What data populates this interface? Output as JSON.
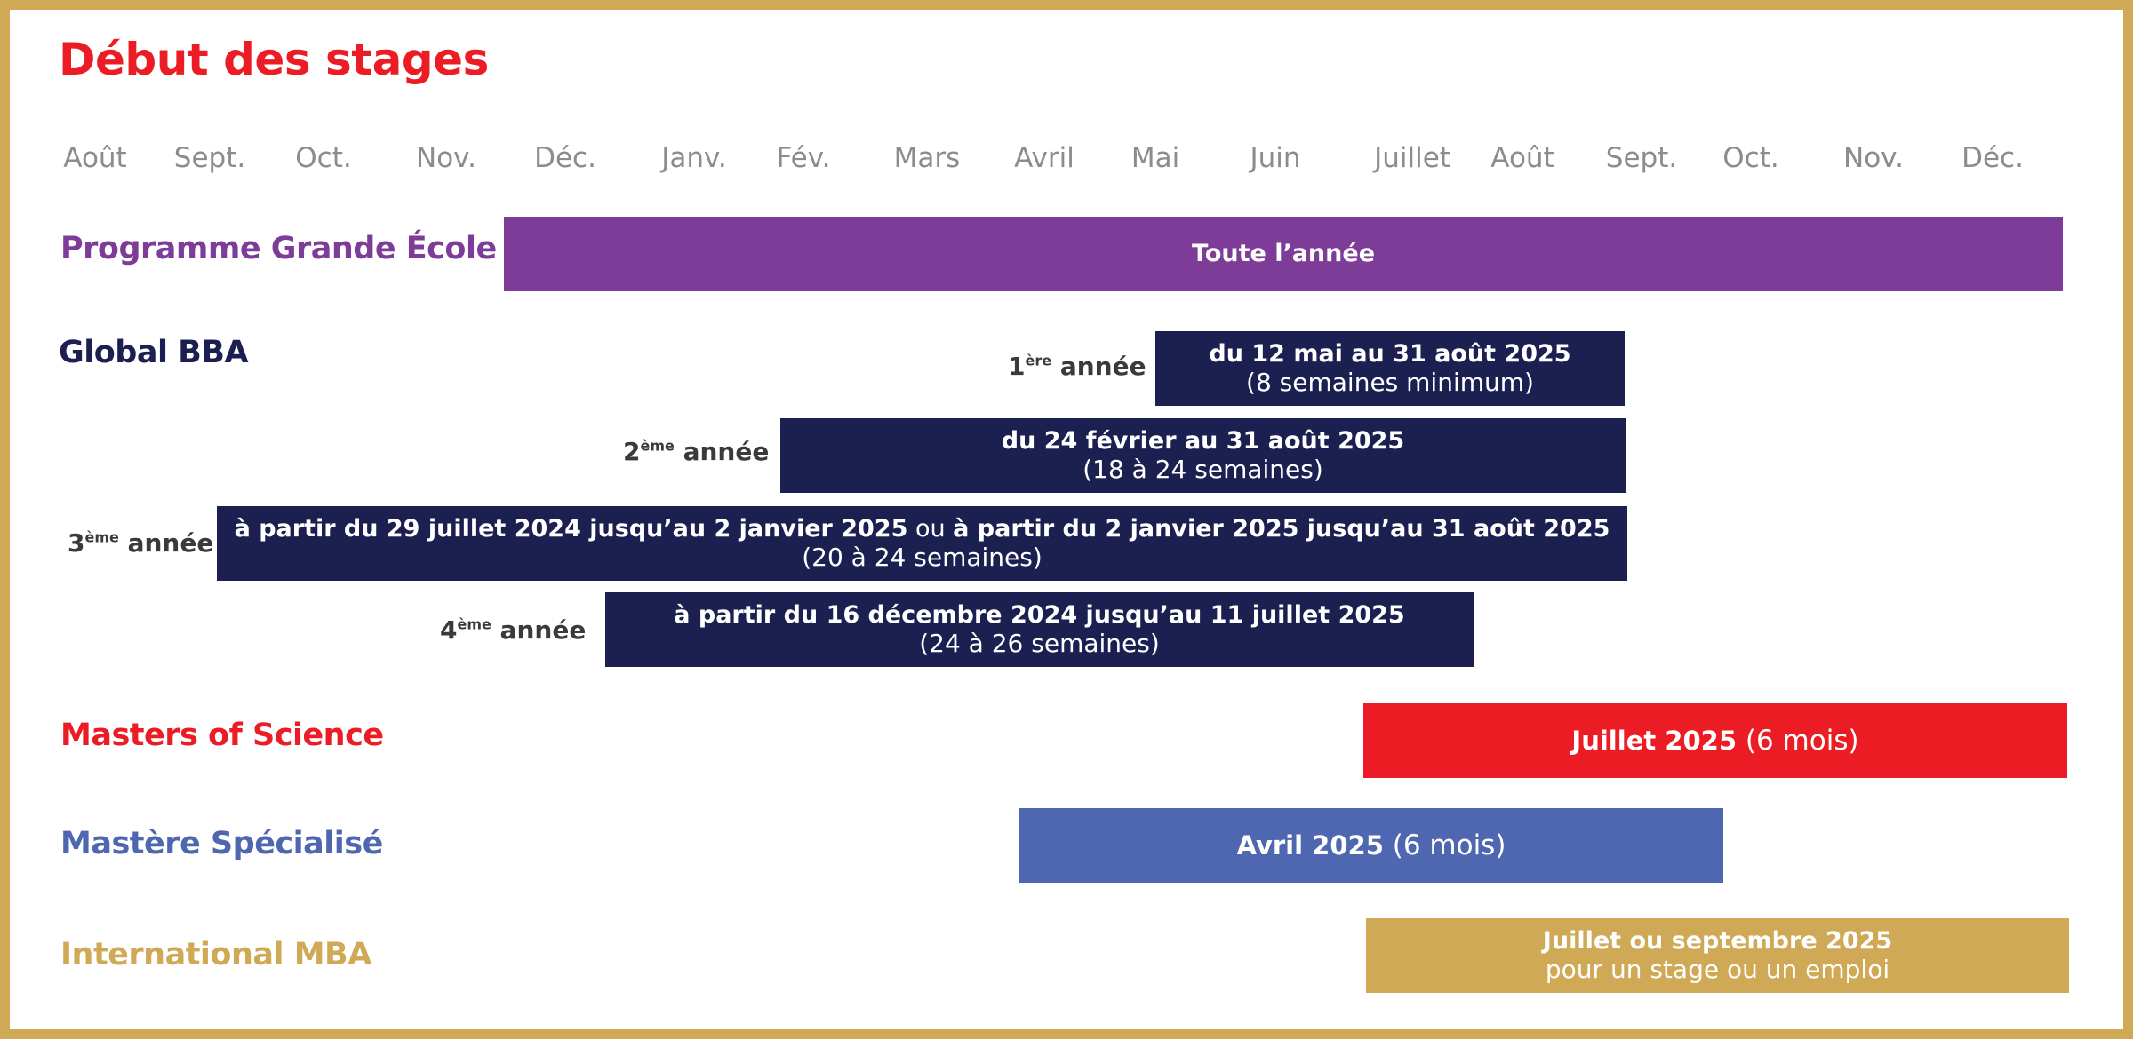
{
  "title": "Début des stages",
  "months": [
    "Août",
    "Sept.",
    "Oct.",
    "Nov.",
    "Déc.",
    "Janv.",
    "Fév.",
    "Mars",
    "Avril",
    "Mai",
    "Juin",
    "Juillet",
    "Août",
    "Sept.",
    "Oct.",
    "Nov.",
    "Déc."
  ],
  "colors": {
    "border": "#CFA955",
    "title": "#EC1C24",
    "pge": "#7D3C98",
    "bba": "#1B2050",
    "msc": "#EC1C24",
    "ms": "#4F67B0",
    "mba": "#CFA955"
  },
  "programs": {
    "pge": {
      "label": "Programme Grande École",
      "bar": "Toute l’année"
    },
    "bba": {
      "label": "Global BBA",
      "years": [
        {
          "num": "1",
          "sup": "ère",
          "word": " année",
          "line1": "du 12 mai au 31 août 2025",
          "line2": "(8 semaines minimum)"
        },
        {
          "num": "2",
          "sup": "ème",
          "word": " année",
          "line1": "du 24 février au 31 août 2025",
          "line2": "(18 à 24 semaines)"
        },
        {
          "num": "3",
          "sup": "ème",
          "word": " année",
          "line1a": "à partir du 29 juillet 2024 jusqu’au 2 janvier 2025",
          "line1_or": " ou ",
          "line1b": "à partir du 2 janvier 2025 jusqu’au 31 août 2025",
          "line2": "(20 à 24 semaines)"
        },
        {
          "num": "4",
          "sup": "ème",
          "word": " année",
          "line1": "à partir du 16 décembre 2024 jusqu’au 11 juillet 2025",
          "line2": "(24 à 26 semaines)"
        }
      ]
    },
    "msc": {
      "label": "Masters of Science",
      "bar_bold": "Juillet 2025",
      "bar_regular": " (6 mois)"
    },
    "ms": {
      "label": "Mastère Spécialisé",
      "bar_bold": "Avril 2025",
      "bar_regular": " (6 mois)"
    },
    "mba": {
      "label": "International MBA",
      "line1": "Juillet ou septembre 2025",
      "line2": "pour un stage ou un emploi"
    }
  }
}
